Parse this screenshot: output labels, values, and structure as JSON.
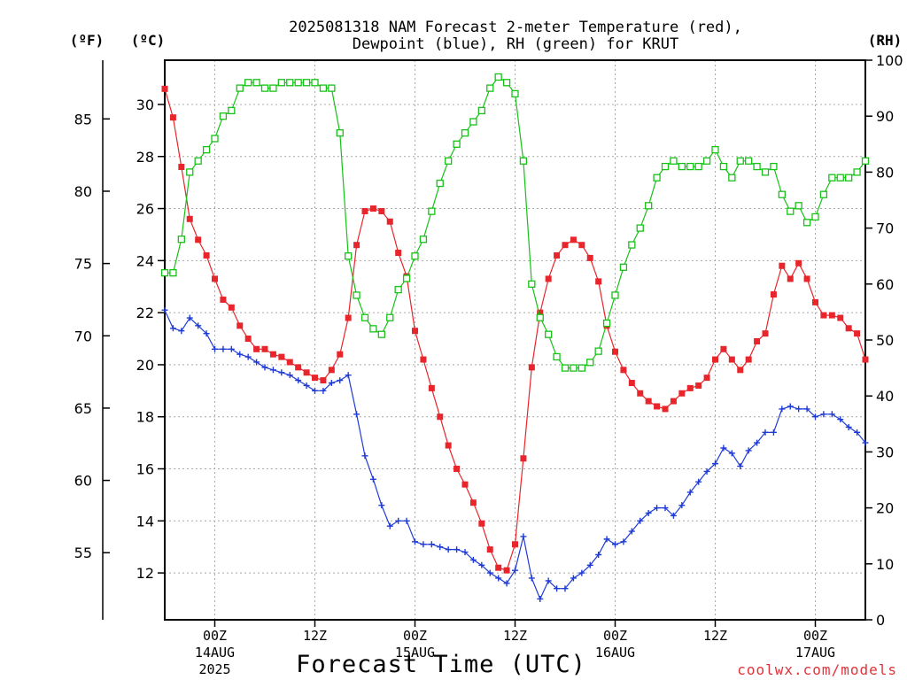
{
  "chart_data": {
    "type": "line",
    "title_lines": [
      "2025081318 NAM Forecast 2-meter Temperature (red),",
      "Dewpoint (blue), RH (green) for KRUT"
    ],
    "xlabel": "Forecast Time (UTC)",
    "credit": "coolwx.com/models",
    "unit_labels": {
      "fahrenheit": "(ºF)",
      "celsius": "(ºC)",
      "rh": "(RH)"
    },
    "celsius_axis": {
      "range": [
        10.2,
        31.7
      ],
      "ticks": [
        "12",
        "14",
        "16",
        "18",
        "20",
        "22",
        "24",
        "26",
        "28",
        "30"
      ]
    },
    "fahrenheit_axis": {
      "ticks": [
        "55",
        "60",
        "65",
        "70",
        "75",
        "80",
        "85"
      ]
    },
    "rh_axis": {
      "range": [
        0,
        100
      ],
      "ticks": [
        "0",
        "10",
        "20",
        "30",
        "40",
        "50",
        "60",
        "70",
        "80",
        "90",
        "100"
      ]
    },
    "x_axis": {
      "range_hours_from_init": [
        0,
        84
      ],
      "ticks": [
        {
          "label": "00Z",
          "date": "14AUG",
          "year": "2025"
        },
        {
          "label": "12Z",
          "date": "",
          "year": ""
        },
        {
          "label": "00Z",
          "date": "15AUG",
          "year": ""
        },
        {
          "label": "12Z",
          "date": "",
          "year": ""
        },
        {
          "label": "00Z",
          "date": "16AUG",
          "year": ""
        },
        {
          "label": "12Z",
          "date": "",
          "year": ""
        },
        {
          "label": "00Z",
          "date": "17AUG",
          "year": ""
        }
      ]
    },
    "grid": true,
    "series": [
      {
        "name": "Temperature",
        "color": "#e8252b",
        "marker": "filled-square",
        "values": [
          30.6,
          29.5,
          27.6,
          25.6,
          24.8,
          24.2,
          23.3,
          22.5,
          22.2,
          21.5,
          21.0,
          20.6,
          20.6,
          20.4,
          20.3,
          20.1,
          19.9,
          19.7,
          19.5,
          19.4,
          19.8,
          20.4,
          21.8,
          24.6,
          25.9,
          26.0,
          25.9,
          25.5,
          24.3,
          23.4,
          21.3,
          20.2,
          19.1,
          18.0,
          16.9,
          16.0,
          15.4,
          14.7,
          13.9,
          12.9,
          12.2,
          12.1,
          13.1,
          16.4,
          19.9,
          22.0,
          23.3,
          24.2,
          24.6,
          24.8,
          24.6,
          24.1,
          23.2,
          21.5,
          20.5,
          19.8,
          19.3,
          18.9,
          18.6,
          18.4,
          18.3,
          18.6,
          18.9,
          19.1,
          19.2,
          19.5,
          20.2,
          20.6,
          20.2,
          19.8,
          20.2,
          20.9,
          21.2,
          22.7,
          23.8,
          23.3,
          23.9,
          23.3,
          22.4,
          21.9,
          21.9,
          21.8,
          21.4,
          21.2,
          20.2
        ]
      },
      {
        "name": "Dewpoint",
        "color": "#1f3bd6",
        "marker": "plus",
        "values": [
          22.1,
          21.4,
          21.3,
          21.8,
          21.5,
          21.2,
          20.6,
          20.6,
          20.6,
          20.4,
          20.3,
          20.1,
          19.9,
          19.8,
          19.7,
          19.6,
          19.4,
          19.2,
          19.0,
          19.0,
          19.3,
          19.4,
          19.6,
          18.1,
          16.5,
          15.6,
          14.6,
          13.8,
          14.0,
          14.0,
          13.2,
          13.1,
          13.1,
          13.0,
          12.9,
          12.9,
          12.8,
          12.5,
          12.3,
          12.0,
          11.8,
          11.6,
          12.1,
          13.4,
          11.8,
          11.0,
          11.7,
          11.4,
          11.4,
          11.8,
          12.0,
          12.3,
          12.7,
          13.3,
          13.1,
          13.2,
          13.6,
          14.0,
          14.3,
          14.5,
          14.5,
          14.2,
          14.6,
          15.1,
          15.5,
          15.9,
          16.2,
          16.8,
          16.6,
          16.1,
          16.7,
          17.0,
          17.4,
          17.4,
          18.3,
          18.4,
          18.3,
          18.3,
          18.0,
          18.1,
          18.1,
          17.9,
          17.6,
          17.4,
          17.0
        ]
      },
      {
        "name": "RH",
        "color": "#17c217",
        "marker": "open-square",
        "values": [
          62,
          62,
          68,
          80,
          82,
          84,
          86,
          90,
          91,
          95,
          96,
          96,
          95,
          95,
          96,
          96,
          96,
          96,
          96,
          95,
          95,
          87,
          65,
          58,
          54,
          52,
          51,
          54,
          59,
          61,
          65,
          68,
          73,
          78,
          82,
          85,
          87,
          89,
          91,
          95,
          97,
          96,
          94,
          82,
          60,
          54,
          51,
          47,
          45,
          45,
          45,
          46,
          48,
          53,
          58,
          63,
          67,
          70,
          74,
          79,
          81,
          82,
          81,
          81,
          81,
          82,
          84,
          81,
          79,
          82,
          82,
          81,
          80,
          81,
          76,
          73,
          74,
          71,
          72,
          76,
          79,
          79,
          79,
          80,
          82
        ]
      }
    ]
  }
}
